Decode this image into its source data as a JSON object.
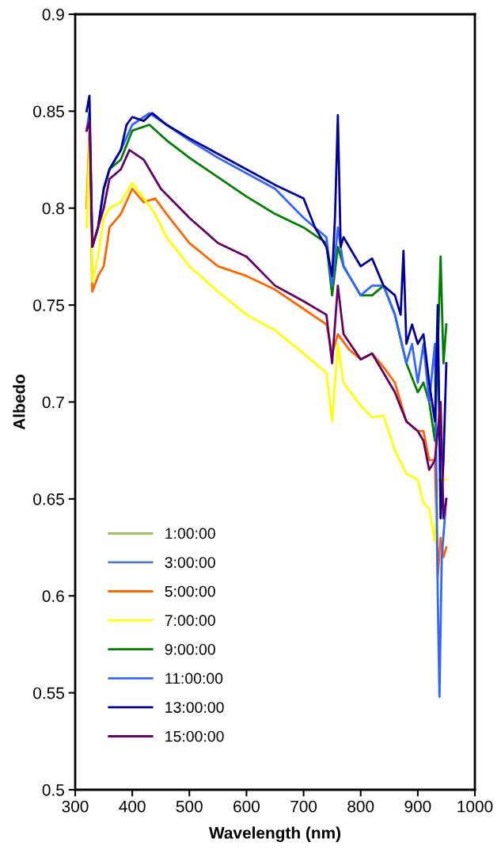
{
  "chart_data": {
    "type": "line",
    "xlabel": "Wavelength (nm)",
    "ylabel": "Albedo",
    "xlim": [
      300,
      1000
    ],
    "xticks": [
      300,
      400,
      500,
      600,
      700,
      800,
      900,
      1000
    ],
    "ylim": [
      0.5,
      0.9
    ],
    "yticks": [
      0.5,
      0.55,
      0.6,
      0.65,
      0.7,
      0.75,
      0.8,
      0.85,
      0.9
    ],
    "grid": false,
    "legend": "bottom left",
    "marker": "none",
    "line_style": "solid",
    "series": [
      {
        "name": "1:00:00",
        "color": "#9bbb59"
      },
      {
        "name": "3:00:00",
        "color": "#4f81bd"
      },
      {
        "name": "5:00:00",
        "color": "#ff6600",
        "x": [
          320,
          325,
          330,
          340,
          350,
          360,
          380,
          400,
          420,
          440,
          460,
          500,
          550,
          600,
          650,
          700,
          740,
          750,
          760,
          780,
          800,
          820,
          840,
          860,
          880,
          900,
          910,
          920,
          930,
          935,
          940,
          945,
          950
        ],
        "values": [
          0.8,
          0.84,
          0.757,
          0.765,
          0.77,
          0.79,
          0.797,
          0.81,
          0.803,
          0.805,
          0.797,
          0.782,
          0.77,
          0.765,
          0.758,
          0.748,
          0.74,
          0.725,
          0.735,
          0.727,
          0.722,
          0.725,
          0.718,
          0.71,
          0.69,
          0.685,
          0.685,
          0.67,
          0.67,
          0.61,
          0.63,
          0.62,
          0.625
        ]
      },
      {
        "name": "7:00:00",
        "color": "#ffff00",
        "x": [
          320,
          325,
          330,
          340,
          350,
          360,
          380,
          400,
          420,
          440,
          460,
          500,
          550,
          600,
          650,
          700,
          740,
          750,
          760,
          770,
          800,
          820,
          840,
          860,
          880,
          900,
          910,
          920,
          930,
          935,
          950
        ],
        "values": [
          0.79,
          0.835,
          0.762,
          0.775,
          0.795,
          0.8,
          0.803,
          0.813,
          0.805,
          0.797,
          0.785,
          0.77,
          0.757,
          0.745,
          0.737,
          0.725,
          0.715,
          0.69,
          0.73,
          0.71,
          0.698,
          0.692,
          0.693,
          0.675,
          0.663,
          0.66,
          0.648,
          0.645,
          0.628,
          0.66,
          0.66
        ]
      },
      {
        "name": "9:00:00",
        "color": "#008000",
        "x": [
          350,
          360,
          380,
          400,
          430,
          460,
          500,
          550,
          600,
          650,
          700,
          740,
          750,
          760,
          770,
          800,
          820,
          840,
          860,
          880,
          900,
          910,
          920,
          930,
          940,
          945,
          950
        ],
        "values": [
          0.81,
          0.82,
          0.825,
          0.84,
          0.843,
          0.835,
          0.826,
          0.816,
          0.806,
          0.797,
          0.79,
          0.782,
          0.755,
          0.78,
          0.77,
          0.755,
          0.755,
          0.76,
          0.745,
          0.72,
          0.705,
          0.71,
          0.7,
          0.68,
          0.775,
          0.72,
          0.74
        ]
      },
      {
        "name": "11:00:00",
        "color": "#3366ff",
        "x": [
          320,
          325,
          330,
          340,
          350,
          360,
          380,
          400,
          430,
          460,
          500,
          550,
          600,
          650,
          700,
          740,
          750,
          760,
          770,
          800,
          820,
          840,
          860,
          880,
          890,
          900,
          910,
          920,
          930,
          935,
          938,
          942,
          950
        ],
        "values": [
          0.84,
          0.85,
          0.78,
          0.79,
          0.81,
          0.82,
          0.83,
          0.843,
          0.849,
          0.843,
          0.835,
          0.826,
          0.818,
          0.81,
          0.795,
          0.785,
          0.76,
          0.79,
          0.77,
          0.755,
          0.76,
          0.76,
          0.745,
          0.72,
          0.73,
          0.71,
          0.73,
          0.7,
          0.73,
          0.6,
          0.548,
          0.62,
          0.65
        ]
      },
      {
        "name": "13:00:00",
        "color": "#000099",
        "x": [
          320,
          325,
          330,
          340,
          350,
          360,
          370,
          380,
          390,
          400,
          420,
          435,
          460,
          500,
          550,
          600,
          650,
          700,
          720,
          740,
          750,
          755,
          760,
          765,
          770,
          800,
          820,
          840,
          860,
          870,
          875,
          880,
          890,
          900,
          910,
          920,
          930,
          935,
          940,
          945,
          950
        ],
        "values": [
          0.85,
          0.858,
          0.78,
          0.79,
          0.81,
          0.82,
          0.825,
          0.83,
          0.843,
          0.847,
          0.845,
          0.849,
          0.843,
          0.836,
          0.828,
          0.82,
          0.812,
          0.805,
          0.79,
          0.78,
          0.765,
          0.795,
          0.848,
          0.78,
          0.785,
          0.77,
          0.774,
          0.76,
          0.755,
          0.745,
          0.778,
          0.73,
          0.74,
          0.73,
          0.735,
          0.71,
          0.69,
          0.75,
          0.64,
          0.67,
          0.72
        ]
      },
      {
        "name": "15:00:00",
        "color": "#660066",
        "x": [
          320,
          325,
          330,
          340,
          350,
          360,
          380,
          395,
          420,
          450,
          500,
          550,
          600,
          650,
          700,
          740,
          750,
          760,
          770,
          800,
          820,
          840,
          860,
          880,
          900,
          910,
          920,
          930,
          940,
          945,
          950
        ],
        "values": [
          0.84,
          0.845,
          0.78,
          0.79,
          0.8,
          0.815,
          0.82,
          0.83,
          0.825,
          0.81,
          0.795,
          0.782,
          0.775,
          0.76,
          0.752,
          0.745,
          0.72,
          0.76,
          0.735,
          0.722,
          0.725,
          0.715,
          0.705,
          0.69,
          0.685,
          0.68,
          0.665,
          0.67,
          0.7,
          0.64,
          0.65
        ]
      }
    ]
  }
}
